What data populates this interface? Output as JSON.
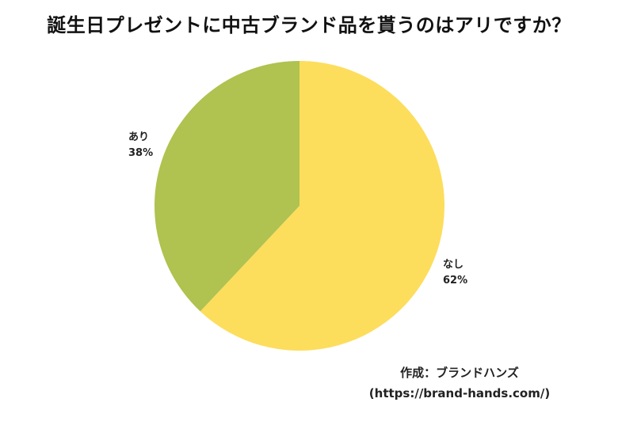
{
  "chart_data": {
    "type": "pie",
    "title": "誕生日プレゼントに中古ブランド品を貰うのはアリですか？",
    "slices": [
      {
        "label": "あり",
        "value": 38,
        "value_label": "38%",
        "color": "#B0C24F"
      },
      {
        "label": "なし",
        "value": 62,
        "value_label": "62%",
        "color": "#FDDD5C"
      }
    ],
    "start_angle": "12 o'clock",
    "direction": "clockwise",
    "order": [
      "なし",
      "あり"
    ]
  },
  "source": {
    "line1": "作成：ブランドハンズ",
    "line2": "(https://brand-hands.com/)"
  }
}
